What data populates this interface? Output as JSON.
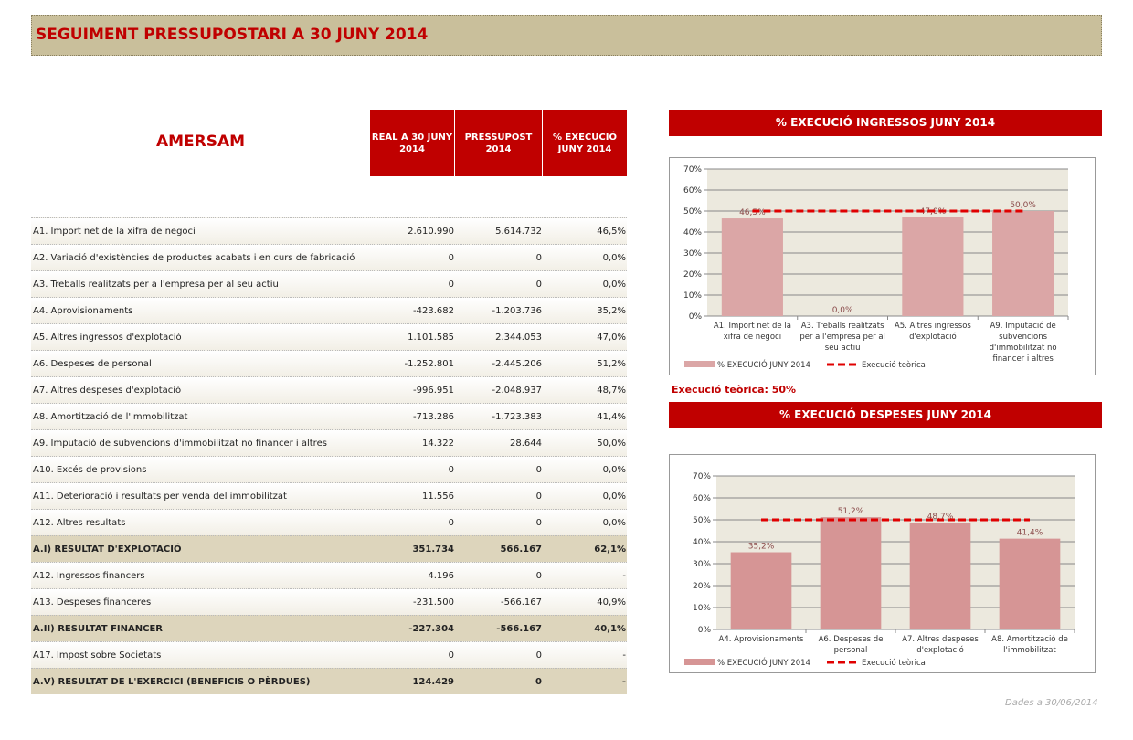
{
  "title": "SEGUIMENT PRESSUPOSTARI A 30 JUNY 2014",
  "company": "AMERSAM",
  "headers": [
    "REAL A 30 JUNY 2014",
    "PRESSUPOST 2014",
    "% EXECUCIÓ JUNY 2014"
  ],
  "rows": [
    {
      "label": "A1. Import net de la xifra de negoci",
      "real": "2.610.990",
      "budget": "5.614.732",
      "pct": "46,5%"
    },
    {
      "label": "A2. Variació d'existències de productes acabats i en curs de fabricació",
      "real": "0",
      "budget": "0",
      "pct": "0,0%"
    },
    {
      "label": "A3. Treballs realitzats per a l'empresa per al seu actiu",
      "real": "0",
      "budget": "0",
      "pct": "0,0%"
    },
    {
      "label": "A4. Aprovisionaments",
      "real": "-423.682",
      "budget": "-1.203.736",
      "pct": "35,2%"
    },
    {
      "label": "A5. Altres ingressos d'explotació",
      "real": "1.101.585",
      "budget": "2.344.053",
      "pct": "47,0%"
    },
    {
      "label": "A6. Despeses de personal",
      "real": "-1.252.801",
      "budget": "-2.445.206",
      "pct": "51,2%"
    },
    {
      "label": "A7. Altres despeses d'explotació",
      "real": "-996.951",
      "budget": "-2.048.937",
      "pct": "48,7%"
    },
    {
      "label": "A8. Amortització de l'immobilitzat",
      "real": "-713.286",
      "budget": "-1.723.383",
      "pct": "41,4%"
    },
    {
      "label": "A9. Imputació de subvencions d'immobilitzat no financer i altres",
      "real": "14.322",
      "budget": "28.644",
      "pct": "50,0%"
    },
    {
      "label": "A10. Excés de provisions",
      "real": "0",
      "budget": "0",
      "pct": "0,0%"
    },
    {
      "label": "A11. Deterioració i resultats per venda del immobilitzat",
      "real": "11.556",
      "budget": "0",
      "pct": "0,0%"
    },
    {
      "label": "A12. Altres resultats",
      "real": "0",
      "budget": "0",
      "pct": "0,0%"
    },
    {
      "label": "A.I) RESULTAT D'EXPLOTACIÓ",
      "real": "351.734",
      "budget": "566.167",
      "pct": "62,1%",
      "total": true
    },
    {
      "label": "A12. Ingressos financers",
      "real": "4.196",
      "budget": "0",
      "pct": "-"
    },
    {
      "label": "A13. Despeses financeres",
      "real": "-231.500",
      "budget": "-566.167",
      "pct": "40,9%"
    },
    {
      "label": "A.II) RESULTAT FINANCER",
      "real": "-227.304",
      "budget": "-566.167",
      "pct": "40,1%",
      "total": true
    },
    {
      "label": "A17. Impost sobre Societats",
      "real": "0",
      "budget": "0",
      "pct": "-"
    },
    {
      "label": "A.V) RESULTAT DE L'EXERCICI (BENEFICIS O PÈRDUES)",
      "real": "124.429",
      "budget": "0",
      "pct": "-",
      "total": true
    }
  ],
  "note": "Execució teòrica: 50%",
  "footer": "Dades a 30/06/2014",
  "chart_data": [
    {
      "type": "bar",
      "title": "% EXECUCIÓ INGRESSOS JUNY 2014",
      "categories": [
        [
          "A1. Import net de la",
          "xifra de negoci"
        ],
        [
          "A3. Treballs realitzats",
          "per a l'empresa per al",
          "seu actiu"
        ],
        [
          "A5. Altres ingressos",
          "d'explotació"
        ],
        [
          "A9. Imputació de",
          "subvencions",
          "d'immobilitzat no",
          "financer i altres"
        ]
      ],
      "values": [
        46.5,
        0,
        47.0,
        50.0
      ],
      "labels": [
        "46,5%",
        "0,0%",
        "47,0%",
        "50,0%"
      ],
      "reference": 50,
      "ylim": [
        0,
        70
      ],
      "yticks": [
        "0%",
        "10%",
        "20%",
        "30%",
        "40%",
        "50%",
        "60%",
        "70%"
      ],
      "legend": [
        "% EXECUCIÓ JUNY 2014",
        "Execució teòrica"
      ],
      "colors": {
        "bar": "#dba6a6",
        "line": "#e00000",
        "plot": "#ece9de"
      }
    },
    {
      "type": "bar",
      "title": "% EXECUCIÓ DESPESES JUNY 2014",
      "categories": [
        [
          "A4. Aprovisionaments"
        ],
        [
          "A6. Despeses de",
          "personal"
        ],
        [
          "A7. Altres despeses",
          "d'explotació"
        ],
        [
          "A8. Amortització de",
          "l'immobilitzat"
        ]
      ],
      "values": [
        35.2,
        51.2,
        48.7,
        41.4
      ],
      "labels": [
        "35,2%",
        "51,2%",
        "48,7%",
        "41,4%"
      ],
      "reference": 50,
      "ylim": [
        0,
        70
      ],
      "yticks": [
        "0%",
        "10%",
        "20%",
        "30%",
        "40%",
        "50%",
        "60%",
        "70%"
      ],
      "legend": [
        "% EXECUCIÓ JUNY 2014",
        "Execució teòrica"
      ],
      "colors": {
        "bar": "#d69595",
        "line": "#e00000",
        "plot": "#ece9de"
      }
    }
  ]
}
